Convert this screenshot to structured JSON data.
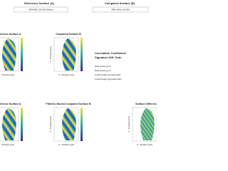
{
  "header": {
    "reference_label": "Reference Surface (A)",
    "reference_name": "SRM2461-200 EM Master",
    "compared_label": "Compared Surface (B)",
    "compared_name": "SRM 2461-214 EM"
  },
  "plots": [
    {
      "title": "Reference Surface A",
      "x_label": "X - Position [µm]",
      "y_label": "Y - Position [µm]"
    },
    {
      "title": "Compared Surface B",
      "x_label": "X - Position [µm]",
      "y_label": "Y - Position [µm]"
    },
    {
      "title": "Reference Surface A",
      "x_label": "X - Position [µm]",
      "y_label": "Y - Position [µm]"
    },
    {
      "title": "Filtered, Moved Compared Surface B",
      "x_label": "X - Position [µm]",
      "y_label": "Y - Position [µm]"
    },
    {
      "title": "Surface Difference",
      "x_label": "X - Position [µm]",
      "y_label": "Y - Position [µm]"
    }
  ],
  "info": [
    "Correlation Coefficient:",
    "Signature Diff. DoA:",
    "Data spacing (X):",
    "Data spacing (Y):",
    "Cutoff length low-pass filter:",
    "Cutoff length high-pass filter:"
  ]
}
